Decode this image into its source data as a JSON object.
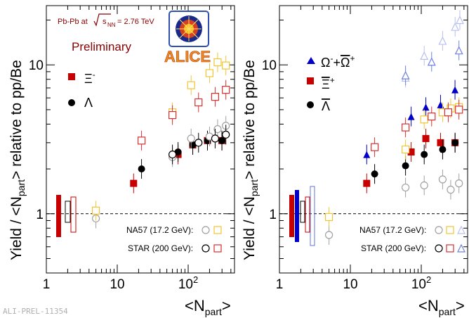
{
  "footer": {
    "watermark": "ALI-PREL-11354"
  },
  "header": {
    "collision": "Pb-Pb at",
    "energy_label": "s",
    "energy_sub": "NN",
    "energy_value": "= 2.76 TeV",
    "status": "Preliminary",
    "logo_text": "ALICE"
  },
  "colors": {
    "alice_red": "#c80000",
    "alice_blue": "#0000c8",
    "alice_black": "#000000",
    "na57_color": "#f2c530",
    "star_color": "#d83030",
    "star_blue_light": "#9aa4e8",
    "na57_gray": "#a0a0a0",
    "title_red": "#8b0000"
  },
  "chart_data": [
    {
      "type": "scatter",
      "panel": "left",
      "ylabel": "Yield / <Npart> relative to pp/Be",
      "xlabel": "<Npart>",
      "xscale": "log",
      "yscale": "log",
      "xlim": [
        1,
        450
      ],
      "ylim": [
        0.4,
        25
      ],
      "xtick_labels": [
        "1",
        "10",
        "10²"
      ],
      "ytick_labels": [
        "1",
        "10"
      ],
      "reference_line": 1,
      "legend": [
        {
          "symbol": "filled-square",
          "color": "#c80000",
          "label": "Ξ⁻"
        },
        {
          "symbol": "filled-circle",
          "color": "#000000",
          "label": "Λ"
        }
      ],
      "experiment_legend": [
        {
          "label": "NA57 (17.2 GeV):",
          "symbols": [
            "circle-gray",
            "square-yellow"
          ]
        },
        {
          "label": "STAR (200 GeV):",
          "symbols": [
            "circle-black",
            "square-red"
          ]
        }
      ],
      "series": [
        {
          "name": "Ξ⁻",
          "marker": "filled-square",
          "color": "#c80000",
          "x": [
            17,
            72,
            116,
            187,
            299
          ],
          "y": [
            1.6,
            2.5,
            2.9,
            3.1,
            3.1
          ]
        },
        {
          "name": "Λ",
          "marker": "filled-circle",
          "color": "#000000",
          "x": [
            22,
            72,
            116,
            187,
            299
          ],
          "y": [
            2.0,
            2.6,
            2.9,
            3.1,
            3.1
          ]
        },
        {
          "name": "NA57 Λ",
          "marker": "open-circle",
          "color": "#a0a0a0",
          "x": [
            5,
            60,
            110,
            200,
            260,
            340
          ],
          "y": [
            0.93,
            2.4,
            3.2,
            3.3,
            3.7,
            3.9
          ]
        },
        {
          "name": "NA57 Ξ",
          "marker": "open-square",
          "color": "#f2c530",
          "x": [
            5,
            60,
            110,
            200,
            260,
            340
          ],
          "y": [
            1.05,
            4.8,
            7.3,
            8.8,
            10.4,
            9.9
          ]
        },
        {
          "name": "STAR Λ",
          "marker": "open-circle",
          "color": "#000000",
          "x": [
            60,
            140,
            240,
            340
          ],
          "y": [
            2.5,
            3.0,
            3.2,
            3.4
          ]
        },
        {
          "name": "STAR Ξ",
          "marker": "open-square",
          "color": "#d83030",
          "x": [
            22,
            60,
            140,
            240,
            340
          ],
          "y": [
            3.1,
            4.6,
            5.6,
            6.1,
            6.8
          ]
        }
      ]
    },
    {
      "type": "scatter",
      "panel": "right",
      "ylabel": "Yield / <Npart> relative to pp/Be",
      "xlabel": "<Npart>",
      "xscale": "log",
      "yscale": "log",
      "xlim": [
        1,
        450
      ],
      "ylim": [
        0.4,
        25
      ],
      "xtick_labels": [
        "1",
        "10",
        "10²"
      ],
      "ytick_labels": [
        "1",
        "10"
      ],
      "reference_line": 1,
      "legend": [
        {
          "symbol": "filled-triangle",
          "color": "#0000c8",
          "label": "Ω⁻+Ω̄⁺"
        },
        {
          "symbol": "filled-square",
          "color": "#c80000",
          "label": "Ξ̄⁺"
        },
        {
          "symbol": "filled-circle",
          "color": "#000000",
          "label": "Λ̄"
        }
      ],
      "experiment_legend": [
        {
          "label": "NA57 (17.2 GeV):",
          "symbols": [
            "circle-gray",
            "square-yellow",
            "triangle-light-blue"
          ]
        },
        {
          "label": "STAR (200 GeV):",
          "symbols": [
            "circle-black",
            "square-red",
            "triangle-blue"
          ]
        }
      ],
      "series": [
        {
          "name": "Ω⁻+Ω̄⁺",
          "marker": "filled-triangle",
          "color": "#0000c8",
          "x": [
            17,
            72,
            116,
            187,
            299
          ],
          "y": [
            2.5,
            4.5,
            5.2,
            5.4,
            6.8
          ]
        },
        {
          "name": "Ξ̄⁺",
          "marker": "filled-square",
          "color": "#c80000",
          "x": [
            17,
            72,
            116,
            187,
            299
          ],
          "y": [
            1.6,
            2.6,
            3.2,
            3.0,
            3.0
          ]
        },
        {
          "name": "Λ̄",
          "marker": "filled-circle",
          "color": "#000000",
          "x": [
            22,
            60,
            110,
            200,
            300
          ],
          "y": [
            1.85,
            2.1,
            2.5,
            2.7,
            3.0
          ]
        },
        {
          "name": "NA57 Λ̄",
          "marker": "open-circle",
          "color": "#a0a0a0",
          "x": [
            5,
            60,
            110,
            200,
            260,
            340
          ],
          "y": [
            0.72,
            1.5,
            1.55,
            1.7,
            1.45,
            1.6
          ]
        },
        {
          "name": "NA57 Ξ̄",
          "marker": "open-square",
          "color": "#f2c530",
          "x": [
            5,
            60,
            110,
            200,
            260,
            340
          ],
          "y": [
            0.95,
            2.7,
            4.3,
            4.8,
            5.1,
            5.2
          ]
        },
        {
          "name": "NA57 Ω",
          "marker": "open-triangle",
          "color": "#b8c0f0",
          "x": [
            60,
            110,
            200,
            300,
            350
          ],
          "y": [
            8.2,
            11.5,
            14.5,
            18,
            20
          ]
        },
        {
          "name": "STAR Ξ̄",
          "marker": "open-square",
          "color": "#d83030",
          "x": [
            22,
            60,
            140,
            240,
            340
          ],
          "y": [
            2.8,
            3.8,
            4.5,
            4.8,
            5.0
          ]
        },
        {
          "name": "STAR Ω",
          "marker": "open-triangle",
          "color": "#7080e0",
          "x": [
            60,
            140,
            340
          ],
          "y": [
            8.5,
            10.5,
            12.5
          ]
        }
      ]
    }
  ]
}
